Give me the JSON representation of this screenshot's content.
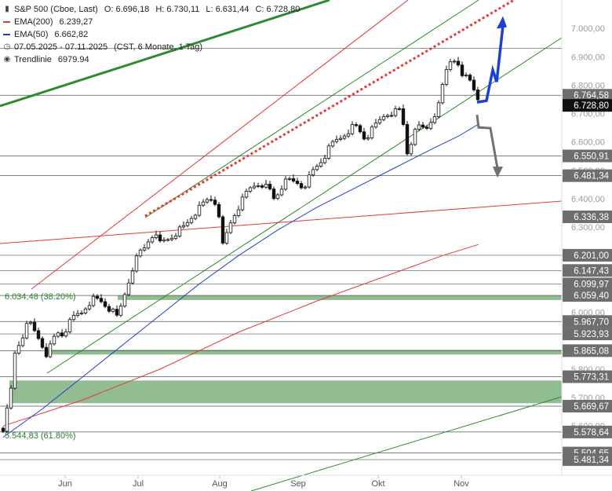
{
  "colors": {
    "candle_up": "#ffffff",
    "candle_down": "#111111",
    "ema200": "#e53935",
    "ema50": "#1e40c8",
    "channel": "#2e8b2e",
    "trend_red": "#e53935",
    "trendline_dots": "#e53935",
    "zone": "#7fb17f",
    "level_line": "#555555",
    "arrow_up": "#1e3fd6",
    "arrow_down": "#707070",
    "price_tag": "#6e6e6e",
    "current_tag": "#111111"
  },
  "legend": {
    "title": "S&P 500 (Cboe, Last)",
    "open": "O: 6.696,18",
    "high": "H: 6.730,11",
    "low": "L: 6.631,44",
    "close": "C: 6.728,80",
    "ema200_label": "EMA(200)",
    "ema200_value": "6.239,27",
    "ema50_label": "EMA(50)",
    "ema50_value": "6.662,82",
    "range": "07.05.2025 - 07.11.2025",
    "period": "(CST, 6 Monate, 1 Tag)",
    "trendline_label": "Trendlinie",
    "trendline_value": "6979.94",
    "ohlc_icon": "candlestick-icon",
    "clock_icon": "clock-icon",
    "trendline_icon": "trendline-icon"
  },
  "chart_data": {
    "type": "candlestick",
    "title": "S&P 500 (Cboe, Last)",
    "x_months": [
      "Jun",
      "Jul",
      "Aug",
      "Sep",
      "Okt",
      "Nov"
    ],
    "y_ticks": [
      "7.000,00",
      "6.900,00",
      "6.800,00",
      "6.700,00",
      "6.600,00",
      "6.500,00",
      "6.400,00",
      "6.300,00",
      "6.000,00",
      "5.800,00",
      "5.700,00",
      "5.600,00"
    ],
    "ylim": [
      5440,
      7100
    ],
    "ohlc_last": {
      "open": 6696.18,
      "high": 6730.11,
      "low": 6631.44,
      "close": 6728.8
    },
    "close_path": [
      {
        "x": 0,
        "close": 5592
      },
      {
        "x": 4,
        "close": 5650
      },
      {
        "x": 8,
        "close": 5668
      },
      {
        "x": 14,
        "close": 5850
      },
      {
        "x": 22,
        "close": 5900
      },
      {
        "x": 30,
        "close": 5950
      },
      {
        "x": 36,
        "close": 5960
      },
      {
        "x": 42,
        "close": 5920
      },
      {
        "x": 48,
        "close": 5900
      },
      {
        "x": 54,
        "close": 5850
      },
      {
        "x": 60,
        "close": 5880
      },
      {
        "x": 68,
        "close": 5930
      },
      {
        "x": 76,
        "close": 5920
      },
      {
        "x": 84,
        "close": 5960
      },
      {
        "x": 92,
        "close": 5990
      },
      {
        "x": 100,
        "close": 6000
      },
      {
        "x": 108,
        "close": 6030
      },
      {
        "x": 116,
        "close": 6050
      },
      {
        "x": 124,
        "close": 6040
      },
      {
        "x": 132,
        "close": 6020
      },
      {
        "x": 140,
        "close": 6000
      },
      {
        "x": 146,
        "close": 5980
      },
      {
        "x": 152,
        "close": 6040
      },
      {
        "x": 158,
        "close": 6090
      },
      {
        "x": 164,
        "close": 6150
      },
      {
        "x": 170,
        "close": 6190
      },
      {
        "x": 176,
        "close": 6220
      },
      {
        "x": 182,
        "close": 6230
      },
      {
        "x": 188,
        "close": 6275
      },
      {
        "x": 194,
        "close": 6265
      },
      {
        "x": 200,
        "close": 6245
      },
      {
        "x": 206,
        "close": 6255
      },
      {
        "x": 212,
        "close": 6260
      },
      {
        "x": 218,
        "close": 6275
      },
      {
        "x": 224,
        "close": 6290
      },
      {
        "x": 232,
        "close": 6305
      },
      {
        "x": 240,
        "close": 6335
      },
      {
        "x": 248,
        "close": 6360
      },
      {
        "x": 256,
        "close": 6385
      },
      {
        "x": 262,
        "close": 6400
      },
      {
        "x": 268,
        "close": 6395
      },
      {
        "x": 274,
        "close": 6370
      },
      {
        "x": 280,
        "close": 6235
      },
      {
        "x": 286,
        "close": 6285
      },
      {
        "x": 292,
        "close": 6330
      },
      {
        "x": 298,
        "close": 6360
      },
      {
        "x": 304,
        "close": 6390
      },
      {
        "x": 310,
        "close": 6420
      },
      {
        "x": 316,
        "close": 6440
      },
      {
        "x": 322,
        "close": 6450
      },
      {
        "x": 328,
        "close": 6455
      },
      {
        "x": 334,
        "close": 6445
      },
      {
        "x": 340,
        "close": 6430
      },
      {
        "x": 346,
        "close": 6395
      },
      {
        "x": 352,
        "close": 6430
      },
      {
        "x": 358,
        "close": 6455
      },
      {
        "x": 364,
        "close": 6465
      },
      {
        "x": 370,
        "close": 6460
      },
      {
        "x": 376,
        "close": 6455
      },
      {
        "x": 382,
        "close": 6440
      },
      {
        "x": 388,
        "close": 6465
      },
      {
        "x": 394,
        "close": 6495
      },
      {
        "x": 400,
        "close": 6515
      },
      {
        "x": 406,
        "close": 6535
      },
      {
        "x": 412,
        "close": 6560
      },
      {
        "x": 418,
        "close": 6590
      },
      {
        "x": 424,
        "close": 6605
      },
      {
        "x": 430,
        "close": 6615
      },
      {
        "x": 436,
        "close": 6630
      },
      {
        "x": 442,
        "close": 6645
      },
      {
        "x": 448,
        "close": 6660
      },
      {
        "x": 454,
        "close": 6640
      },
      {
        "x": 460,
        "close": 6615
      },
      {
        "x": 466,
        "close": 6625
      },
      {
        "x": 472,
        "close": 6650
      },
      {
        "x": 478,
        "close": 6670
      },
      {
        "x": 484,
        "close": 6690
      },
      {
        "x": 490,
        "close": 6700
      },
      {
        "x": 496,
        "close": 6705
      },
      {
        "x": 502,
        "close": 6710
      },
      {
        "x": 508,
        "close": 6715
      },
      {
        "x": 514,
        "close": 6555
      },
      {
        "x": 520,
        "close": 6600
      },
      {
        "x": 526,
        "close": 6640
      },
      {
        "x": 532,
        "close": 6660
      },
      {
        "x": 538,
        "close": 6640
      },
      {
        "x": 544,
        "close": 6670
      },
      {
        "x": 550,
        "close": 6700
      },
      {
        "x": 556,
        "close": 6735
      },
      {
        "x": 562,
        "close": 6830
      },
      {
        "x": 568,
        "close": 6880
      },
      {
        "x": 574,
        "close": 6900
      },
      {
        "x": 580,
        "close": 6860
      },
      {
        "x": 586,
        "close": 6820
      },
      {
        "x": 592,
        "close": 6840
      },
      {
        "x": 598,
        "close": 6800
      },
      {
        "x": 604,
        "close": 6770
      },
      {
        "x": 608,
        "close": 6729
      }
    ],
    "ema50": [
      {
        "x": 0,
        "v": 5560
      },
      {
        "x": 50,
        "v": 5660
      },
      {
        "x": 100,
        "v": 5770
      },
      {
        "x": 150,
        "v": 5880
      },
      {
        "x": 200,
        "v": 5990
      },
      {
        "x": 250,
        "v": 6100
      },
      {
        "x": 300,
        "v": 6200
      },
      {
        "x": 350,
        "v": 6290
      },
      {
        "x": 400,
        "v": 6370
      },
      {
        "x": 450,
        "v": 6440
      },
      {
        "x": 500,
        "v": 6510
      },
      {
        "x": 550,
        "v": 6580
      },
      {
        "x": 580,
        "v": 6620
      },
      {
        "x": 606,
        "v": 6663
      }
    ],
    "ema200": [
      {
        "x": 0,
        "v": 5600
      },
      {
        "x": 100,
        "v": 5690
      },
      {
        "x": 200,
        "v": 5800
      },
      {
        "x": 300,
        "v": 5930
      },
      {
        "x": 400,
        "v": 6040
      },
      {
        "x": 500,
        "v": 6140
      },
      {
        "x": 560,
        "v": 6200
      },
      {
        "x": 606,
        "v": 6239
      }
    ],
    "trendline": {
      "label": "Trendlinie",
      "value": 6979.94
    },
    "levels": [
      {
        "label": "6.764,58",
        "value": 6764.58
      },
      {
        "label": "6.550,91",
        "value": 6550.91
      },
      {
        "label": "6.481,34",
        "value": 6481.34
      },
      {
        "label": "6.336,38",
        "value": 6336.38
      },
      {
        "label": "6.201,00",
        "value": 6201.0
      },
      {
        "label": "6.147,43",
        "value": 6147.43
      },
      {
        "label": "6.099,97",
        "value": 6099.97
      },
      {
        "label": "6.059,40",
        "value": 6059.4
      },
      {
        "label": "5.967,70",
        "value": 5967.7
      },
      {
        "label": "5.923,93",
        "value": 5923.93
      },
      {
        "label": "5.865,08",
        "value": 5865.08
      },
      {
        "label": "5.773,31",
        "value": 5773.31
      },
      {
        "label": "5.669,67",
        "value": 5669.67
      },
      {
        "label": "5.578,64",
        "value": 5578.64
      },
      {
        "label": "5.504,65",
        "value": 5504.65
      },
      {
        "label": "5.481,34",
        "value": 5481.34
      }
    ],
    "current_price": {
      "label": "6.728,80",
      "value": 6728.8
    },
    "fib_labels": [
      {
        "label": "6.034,48 (38.20%)",
        "value": 6034.48
      },
      {
        "label": "5.544,83 (61.80%)",
        "value": 5544.83
      }
    ],
    "zones": [
      {
        "from": 6045,
        "to": 6060
      },
      {
        "from": 5860,
        "to": 5868
      },
      {
        "from": 5680,
        "to": 5760
      }
    ],
    "horizontal_lines": [
      6930,
      6764.58,
      6550.91,
      6481.34,
      6201.0,
      6147.43,
      6099.97,
      6059.4,
      5967.7,
      5923.93,
      5865.08,
      5773.31,
      5669.67,
      5578.64,
      5504.65,
      5481.34
    ],
    "scenarios": {
      "up_target": 7010,
      "down_target": 6480
    }
  }
}
